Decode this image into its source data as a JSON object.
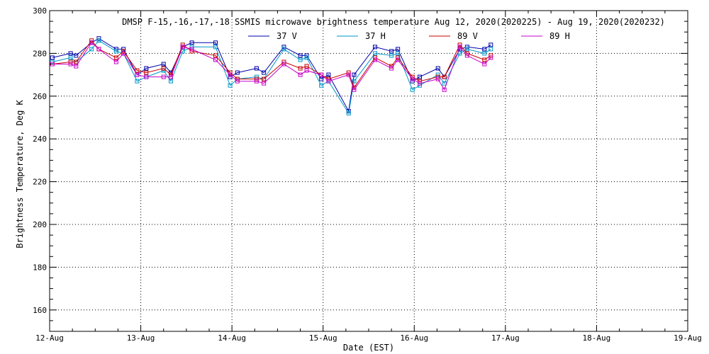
{
  "chart_data": {
    "type": "line",
    "title": "DMSP F-15,-16,-17,-18 SSMIS microwave brightness temperature Aug 12, 2020(2020225) - Aug 19, 2020(2020232)",
    "xlabel": "Date (EST)",
    "ylabel": "Brightness Temperature, Deg K",
    "xlim": [
      0,
      7
    ],
    "ylim": [
      150,
      300
    ],
    "x_ticks": [
      {
        "value": 0,
        "label": "12-Aug"
      },
      {
        "value": 1,
        "label": "13-Aug"
      },
      {
        "value": 2,
        "label": "14-Aug"
      },
      {
        "value": 3,
        "label": "15-Aug"
      },
      {
        "value": 4,
        "label": "16-Aug"
      },
      {
        "value": 5,
        "label": "17-Aug"
      },
      {
        "value": 6,
        "label": "18-Aug"
      },
      {
        "value": 7,
        "label": "19-Aug"
      }
    ],
    "y_ticks": [
      160,
      180,
      200,
      220,
      240,
      260,
      280,
      300
    ],
    "grid": true,
    "legend_position": "top",
    "series": [
      {
        "name": "37 V",
        "color": "#0000a8",
        "points": [
          [
            0.03,
            278
          ],
          [
            0.23,
            280
          ],
          [
            0.29,
            279
          ],
          [
            0.46,
            285
          ],
          [
            0.54,
            287
          ],
          [
            0.73,
            282
          ],
          [
            0.81,
            282
          ],
          [
            0.96,
            270
          ],
          [
            1.06,
            273
          ],
          [
            1.25,
            275
          ],
          [
            1.33,
            271
          ],
          [
            1.46,
            283
          ],
          [
            1.56,
            285
          ],
          [
            1.82,
            285
          ],
          [
            1.98,
            269
          ],
          [
            2.06,
            271
          ],
          [
            2.27,
            273
          ],
          [
            2.35,
            271
          ],
          [
            2.57,
            283
          ],
          [
            2.75,
            279
          ],
          [
            2.82,
            279
          ],
          [
            2.98,
            268
          ],
          [
            3.06,
            270
          ],
          [
            3.28,
            253
          ],
          [
            3.34,
            270
          ],
          [
            3.57,
            283
          ],
          [
            3.75,
            281
          ],
          [
            3.82,
            282
          ],
          [
            3.98,
            267
          ],
          [
            4.06,
            269
          ],
          [
            4.26,
            273
          ],
          [
            4.33,
            269
          ],
          [
            4.5,
            282
          ],
          [
            4.58,
            283
          ],
          [
            4.77,
            282
          ],
          [
            4.84,
            284
          ]
        ]
      },
      {
        "name": "37 H",
        "color": "#0096c8",
        "points": [
          [
            0.03,
            276
          ],
          [
            0.23,
            278
          ],
          [
            0.29,
            276
          ],
          [
            0.46,
            282
          ],
          [
            0.54,
            286
          ],
          [
            0.73,
            281
          ],
          [
            0.81,
            280
          ],
          [
            0.96,
            267
          ],
          [
            1.06,
            269
          ],
          [
            1.25,
            272
          ],
          [
            1.33,
            267
          ],
          [
            1.46,
            281
          ],
          [
            1.56,
            283
          ],
          [
            1.82,
            283
          ],
          [
            1.98,
            265
          ],
          [
            2.06,
            268
          ],
          [
            2.27,
            269
          ],
          [
            2.35,
            268
          ],
          [
            2.57,
            282
          ],
          [
            2.75,
            277
          ],
          [
            2.82,
            278
          ],
          [
            2.98,
            265
          ],
          [
            3.06,
            267
          ],
          [
            3.28,
            252
          ],
          [
            3.34,
            267
          ],
          [
            3.57,
            280
          ],
          [
            3.75,
            279
          ],
          [
            3.82,
            280
          ],
          [
            3.98,
            263
          ],
          [
            4.06,
            265
          ],
          [
            4.26,
            270
          ],
          [
            4.33,
            266
          ],
          [
            4.5,
            280
          ],
          [
            4.58,
            282
          ],
          [
            4.77,
            280
          ],
          [
            4.84,
            282
          ]
        ]
      },
      {
        "name": "89 V",
        "color": "#c80000",
        "points": [
          [
            0.03,
            275
          ],
          [
            0.23,
            276
          ],
          [
            0.29,
            276
          ],
          [
            0.46,
            286
          ],
          [
            0.54,
            282
          ],
          [
            0.73,
            278
          ],
          [
            0.81,
            281
          ],
          [
            0.96,
            272
          ],
          [
            1.06,
            271
          ],
          [
            1.25,
            273
          ],
          [
            1.33,
            270
          ],
          [
            1.46,
            284
          ],
          [
            1.56,
            281
          ],
          [
            1.82,
            279
          ],
          [
            1.98,
            271
          ],
          [
            2.06,
            268
          ],
          [
            2.27,
            268
          ],
          [
            2.35,
            268
          ],
          [
            2.57,
            276
          ],
          [
            2.75,
            273
          ],
          [
            2.82,
            274
          ],
          [
            2.98,
            270
          ],
          [
            3.06,
            268
          ],
          [
            3.28,
            271
          ],
          [
            3.34,
            264
          ],
          [
            3.57,
            278
          ],
          [
            3.75,
            274
          ],
          [
            3.82,
            278
          ],
          [
            3.98,
            269
          ],
          [
            4.06,
            267
          ],
          [
            4.26,
            269
          ],
          [
            4.33,
            269
          ],
          [
            4.5,
            284
          ],
          [
            4.58,
            280
          ],
          [
            4.77,
            277
          ],
          [
            4.84,
            279
          ]
        ]
      },
      {
        "name": "89 H",
        "color": "#c800c8",
        "points": [
          [
            0.03,
            275
          ],
          [
            0.23,
            275
          ],
          [
            0.29,
            274
          ],
          [
            0.46,
            285
          ],
          [
            0.54,
            282
          ],
          [
            0.73,
            276
          ],
          [
            0.81,
            280
          ],
          [
            0.96,
            270
          ],
          [
            1.06,
            269
          ],
          [
            1.25,
            269
          ],
          [
            1.33,
            269
          ],
          [
            1.46,
            283
          ],
          [
            1.56,
            282
          ],
          [
            1.82,
            277
          ],
          [
            1.98,
            270
          ],
          [
            2.06,
            267
          ],
          [
            2.27,
            267
          ],
          [
            2.35,
            266
          ],
          [
            2.57,
            275
          ],
          [
            2.75,
            270
          ],
          [
            2.82,
            272
          ],
          [
            2.98,
            270
          ],
          [
            3.06,
            267
          ],
          [
            3.28,
            270
          ],
          [
            3.34,
            263
          ],
          [
            3.57,
            277
          ],
          [
            3.75,
            273
          ],
          [
            3.82,
            277
          ],
          [
            3.98,
            268
          ],
          [
            4.06,
            266
          ],
          [
            4.26,
            268
          ],
          [
            4.33,
            263
          ],
          [
            4.5,
            283
          ],
          [
            4.58,
            279
          ],
          [
            4.77,
            275
          ],
          [
            4.84,
            278
          ]
        ]
      }
    ]
  }
}
